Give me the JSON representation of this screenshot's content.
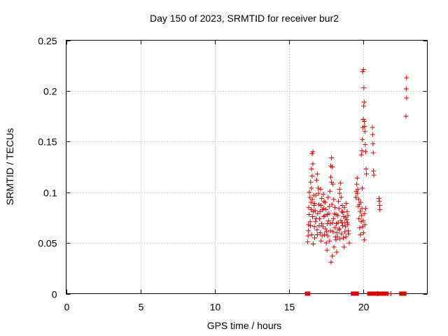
{
  "chart_data": {
    "type": "scatter",
    "title": "Day 150 of 2023, SRMTID for receiver bur2",
    "xlabel": "GPS time / hours",
    "ylabel": "SRMTID / TECUs",
    "xlim": [
      0,
      24.3
    ],
    "ylim": [
      0,
      0.25
    ],
    "x_ticks": [
      0,
      5,
      10,
      15,
      20
    ],
    "x_tick_labels": [
      "0",
      "5",
      "10",
      "15",
      "20"
    ],
    "y_ticks": [
      0,
      0.05,
      0.1,
      0.15,
      0.2,
      0.25
    ],
    "y_tick_labels": [
      "0",
      "0.05",
      "0.1",
      "0.15",
      "0.2",
      "0.25"
    ],
    "grid": true,
    "marker": "+",
    "color": "#e00000",
    "series": [
      {
        "name": "SRMTID",
        "points": [
          [
            16.25,
            0.051
          ],
          [
            16.3,
            0.062
          ],
          [
            16.35,
            0.078
          ],
          [
            16.4,
            0.095
          ],
          [
            16.45,
            0.11
          ],
          [
            16.5,
            0.123
          ],
          [
            16.55,
            0.138
          ],
          [
            16.6,
            0.14
          ],
          [
            16.32,
            0.085
          ],
          [
            16.42,
            0.071
          ],
          [
            16.52,
            0.058
          ],
          [
            16.62,
            0.049
          ],
          [
            16.7,
            0.066
          ],
          [
            16.75,
            0.082
          ],
          [
            16.8,
            0.097
          ],
          [
            16.85,
            0.112
          ],
          [
            16.9,
            0.118
          ],
          [
            16.95,
            0.104
          ],
          [
            17.0,
            0.088
          ],
          [
            17.05,
            0.074
          ],
          [
            17.1,
            0.06
          ],
          [
            17.15,
            0.052
          ],
          [
            17.2,
            0.069
          ],
          [
            17.25,
            0.083
          ],
          [
            17.3,
            0.098
          ],
          [
            17.35,
            0.091
          ],
          [
            17.4,
            0.077
          ],
          [
            17.45,
            0.064
          ],
          [
            17.5,
            0.05
          ],
          [
            17.55,
            0.043
          ],
          [
            17.6,
            0.057
          ],
          [
            17.65,
            0.072
          ],
          [
            17.7,
            0.086
          ],
          [
            17.75,
            0.101
          ],
          [
            17.8,
            0.115
          ],
          [
            17.85,
            0.134
          ],
          [
            17.9,
            0.125
          ],
          [
            17.95,
            0.108
          ],
          [
            18.0,
            0.093
          ],
          [
            18.05,
            0.079
          ],
          [
            18.1,
            0.065
          ],
          [
            18.15,
            0.053
          ],
          [
            18.2,
            0.041
          ],
          [
            18.25,
            0.056
          ],
          [
            18.3,
            0.07
          ],
          [
            18.35,
            0.084
          ],
          [
            18.4,
            0.099
          ],
          [
            18.45,
            0.109
          ],
          [
            18.5,
            0.095
          ],
          [
            18.55,
            0.081
          ],
          [
            18.6,
            0.067
          ],
          [
            18.65,
            0.055
          ],
          [
            18.7,
            0.046
          ],
          [
            18.75,
            0.061
          ],
          [
            18.8,
            0.075
          ],
          [
            18.85,
            0.089
          ],
          [
            18.9,
            0.081
          ],
          [
            18.95,
            0.068
          ],
          [
            19.0,
            0.059
          ],
          [
            19.05,
            0.05
          ],
          [
            17.82,
            0.031
          ],
          [
            17.9,
            0.037
          ],
          [
            18.02,
            0.046
          ],
          [
            18.12,
            0.056
          ],
          [
            16.47,
            0.09
          ],
          [
            16.58,
            0.076
          ],
          [
            16.68,
            0.087
          ],
          [
            16.78,
            0.071
          ],
          [
            16.88,
            0.063
          ],
          [
            16.98,
            0.099
          ],
          [
            17.08,
            0.081
          ],
          [
            17.18,
            0.094
          ],
          [
            17.28,
            0.066
          ],
          [
            17.38,
            0.058
          ],
          [
            17.48,
            0.083
          ],
          [
            17.58,
            0.069
          ],
          [
            17.68,
            0.079
          ],
          [
            17.78,
            0.062
          ],
          [
            17.88,
            0.088
          ],
          [
            17.98,
            0.074
          ],
          [
            18.08,
            0.085
          ],
          [
            18.18,
            0.069
          ],
          [
            18.28,
            0.077
          ],
          [
            18.38,
            0.064
          ],
          [
            18.48,
            0.072
          ],
          [
            18.58,
            0.087
          ],
          [
            18.68,
            0.076
          ],
          [
            18.78,
            0.066
          ],
          [
            18.88,
            0.073
          ],
          [
            18.98,
            0.062
          ],
          [
            16.36,
            0.1
          ],
          [
            16.44,
            0.067
          ],
          [
            16.56,
            0.093
          ],
          [
            16.64,
            0.081
          ],
          [
            16.72,
            0.055
          ],
          [
            16.82,
            0.074
          ],
          [
            17.12,
            0.103
          ],
          [
            17.22,
            0.057
          ],
          [
            17.42,
            0.09
          ],
          [
            17.62,
            0.095
          ],
          [
            17.72,
            0.052
          ],
          [
            18.22,
            0.06
          ],
          [
            18.42,
            0.054
          ],
          [
            18.62,
            0.08
          ],
          [
            18.72,
            0.085
          ],
          [
            18.82,
            0.056
          ],
          [
            16.3,
            0.068
          ],
          [
            16.5,
            0.104
          ],
          [
            16.66,
            0.097
          ],
          [
            16.92,
            0.079
          ],
          [
            17.02,
            0.067
          ],
          [
            17.32,
            0.076
          ],
          [
            17.52,
            0.061
          ],
          [
            17.92,
            0.07
          ],
          [
            18.32,
            0.091
          ],
          [
            18.52,
            0.059
          ],
          [
            18.92,
            0.07
          ],
          [
            16.6,
            0.128
          ],
          [
            16.55,
            0.116
          ],
          [
            17.8,
            0.126
          ],
          [
            17.85,
            0.11
          ],
          [
            18.4,
            0.103
          ],
          [
            16.28,
            0.057
          ],
          [
            16.48,
            0.083
          ],
          [
            16.7,
            0.089
          ],
          [
            16.9,
            0.058
          ],
          [
            17.14,
            0.087
          ],
          [
            17.34,
            0.084
          ],
          [
            17.56,
            0.078
          ],
          [
            17.76,
            0.069
          ],
          [
            17.96,
            0.061
          ],
          [
            18.16,
            0.078
          ],
          [
            18.36,
            0.063
          ],
          [
            18.56,
            0.07
          ],
          [
            18.76,
            0.07
          ],
          [
            18.96,
            0.077
          ],
          [
            19.5,
            0.095
          ],
          [
            19.55,
            0.108
          ],
          [
            19.6,
            0.099
          ],
          [
            19.65,
            0.086
          ],
          [
            19.7,
            0.074
          ],
          [
            19.75,
            0.065
          ],
          [
            19.8,
            0.058
          ],
          [
            19.85,
            0.071
          ],
          [
            19.9,
            0.084
          ],
          [
            19.95,
            0.066
          ],
          [
            20.0,
            0.06
          ],
          [
            20.05,
            0.053
          ],
          [
            20.1,
            0.068
          ],
          [
            20.15,
            0.084
          ],
          [
            19.58,
            0.114
          ],
          [
            19.68,
            0.093
          ],
          [
            19.78,
            0.081
          ],
          [
            19.88,
            0.077
          ],
          [
            19.98,
            0.072
          ],
          [
            20.08,
            0.079
          ],
          [
            19.62,
            0.103
          ],
          [
            19.72,
            0.088
          ],
          [
            19.52,
            0.101
          ],
          [
            19.82,
            0.09
          ],
          [
            19.92,
            0.104
          ],
          [
            19.86,
            0.137
          ],
          [
            19.9,
            0.141
          ],
          [
            19.93,
            0.152
          ],
          [
            19.96,
            0.164
          ],
          [
            19.99,
            0.172
          ],
          [
            20.02,
            0.185
          ],
          [
            20.05,
            0.189
          ],
          [
            19.95,
            0.219
          ],
          [
            20.0,
            0.221
          ],
          [
            20.03,
            0.203
          ],
          [
            20.06,
            0.17
          ],
          [
            20.08,
            0.165
          ],
          [
            20.1,
            0.16
          ],
          [
            20.12,
            0.147
          ],
          [
            20.15,
            0.14
          ],
          [
            20.18,
            0.123
          ],
          [
            20.2,
            0.118
          ],
          [
            20.6,
            0.164
          ],
          [
            20.62,
            0.157
          ],
          [
            20.64,
            0.148
          ],
          [
            20.66,
            0.139
          ],
          [
            20.68,
            0.121
          ],
          [
            20.7,
            0.117
          ],
          [
            21.05,
            0.094
          ],
          [
            21.07,
            0.091
          ],
          [
            21.09,
            0.087
          ],
          [
            21.1,
            0.083
          ],
          [
            22.9,
            0.213
          ],
          [
            22.88,
            0.202
          ],
          [
            22.9,
            0.193
          ],
          [
            22.86,
            0.175
          ]
        ]
      }
    ],
    "zero_bars_hours": [
      [
        16.15,
        16.32
      ],
      [
        19.25,
        19.6
      ],
      [
        20.35,
        20.9
      ],
      [
        21.05,
        21.2
      ],
      [
        21.35,
        21.6
      ],
      [
        22.5,
        22.8
      ]
    ],
    "zero_ticks_hours": [
      20.95,
      21.85
    ]
  }
}
